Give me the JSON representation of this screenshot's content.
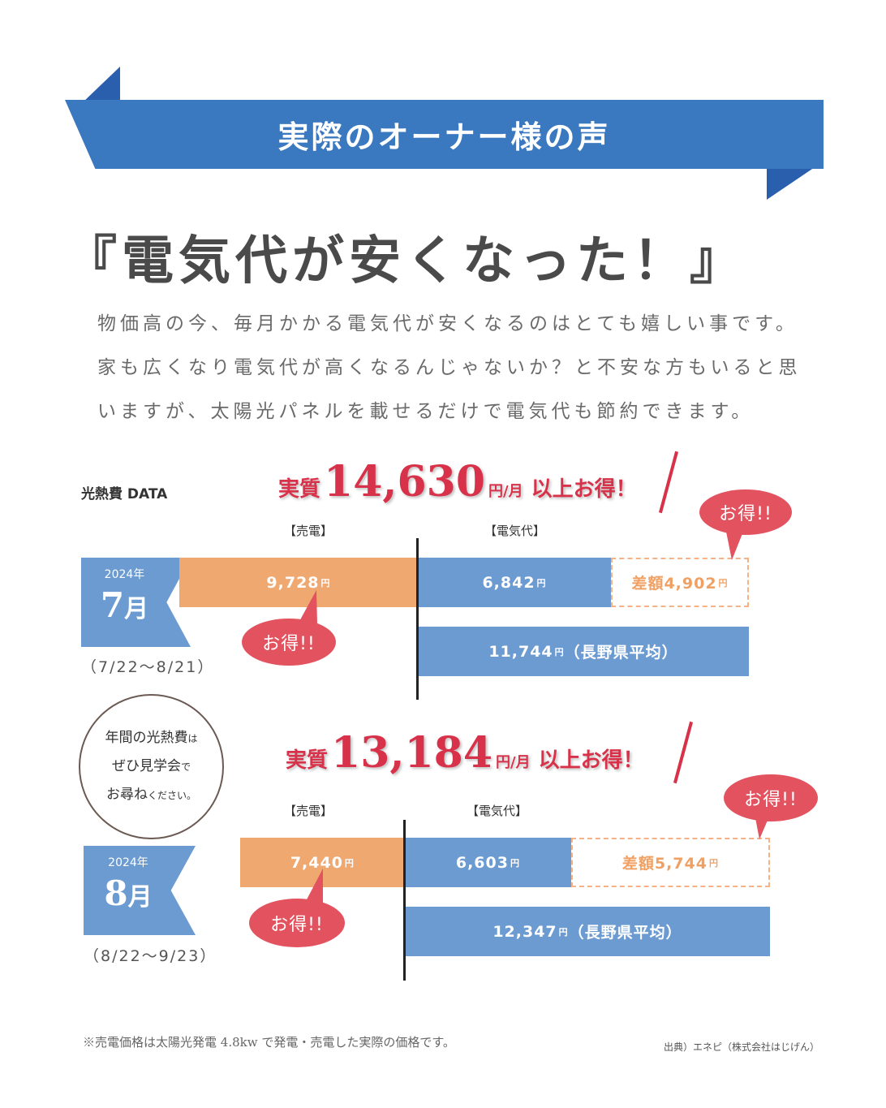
{
  "ribbon": {
    "title": "実際のオーナー様の声"
  },
  "headline": "『電気代が安くなった！』",
  "paragraph": [
    "物価高の今、毎月かかる電気代が安くなるのはとても嬉しい事です。",
    "家も広くなり電気代が高くなるんじゃないか？と不安な方もいると思",
    "いますが、太陽光パネルを載せるだけで電気代も節約できます。"
  ],
  "section_label": "光熱費 DATA",
  "circle_note": {
    "line1": "年間の光熱費",
    "line1_suffix": "は",
    "line2": "ぜひ見学会",
    "line2_suffix": "で",
    "line3": "お尋ね",
    "line3_suffix": "ください。"
  },
  "footnote": "※売電価格は太陽光発電 4.8kw で発電・売電した実際の価格です。",
  "source": "出典）エネピ（株式会社はじげん）",
  "colors": {
    "ribbon": "#3a78c0",
    "sale": "#f0a871",
    "electric": "#6b9bd1",
    "accent": "#d8324a",
    "bubble": "#e2525f"
  },
  "chart_data": [
    {
      "type": "bar",
      "year": "2024年",
      "month_num": "7",
      "month_unit": "月",
      "range": "（7/22～8/21）",
      "saving": {
        "prefix": "実質",
        "value": "14,630",
        "unit": "円/月",
        "suffix": "以上お得！"
      },
      "col_sale": "【売電】",
      "col_electric": "【電気代】",
      "sale": {
        "value": 9728,
        "label": "9,728"
      },
      "electric": {
        "value": 6842,
        "label": "6,842"
      },
      "diff": {
        "value": 4902,
        "label": "差額4,902"
      },
      "average": {
        "value": 11744,
        "label": "11,744",
        "suffix": "（長野県平均）"
      },
      "yen": "円",
      "bubble": "お得!!"
    },
    {
      "type": "bar",
      "year": "2024年",
      "month_num": "8",
      "month_unit": "月",
      "range": "（8/22～9/23）",
      "saving": {
        "prefix": "実質",
        "value": "13,184",
        "unit": "円/月",
        "suffix": "以上お得！"
      },
      "col_sale": "【売電】",
      "col_electric": "【電気代】",
      "sale": {
        "value": 7440,
        "label": "7,440"
      },
      "electric": {
        "value": 6603,
        "label": "6,603"
      },
      "diff": {
        "value": 5744,
        "label": "差額5,744"
      },
      "average": {
        "value": 12347,
        "label": "12,347",
        "suffix": "（長野県平均）"
      },
      "yen": "円",
      "bubble": "お得!!"
    }
  ]
}
